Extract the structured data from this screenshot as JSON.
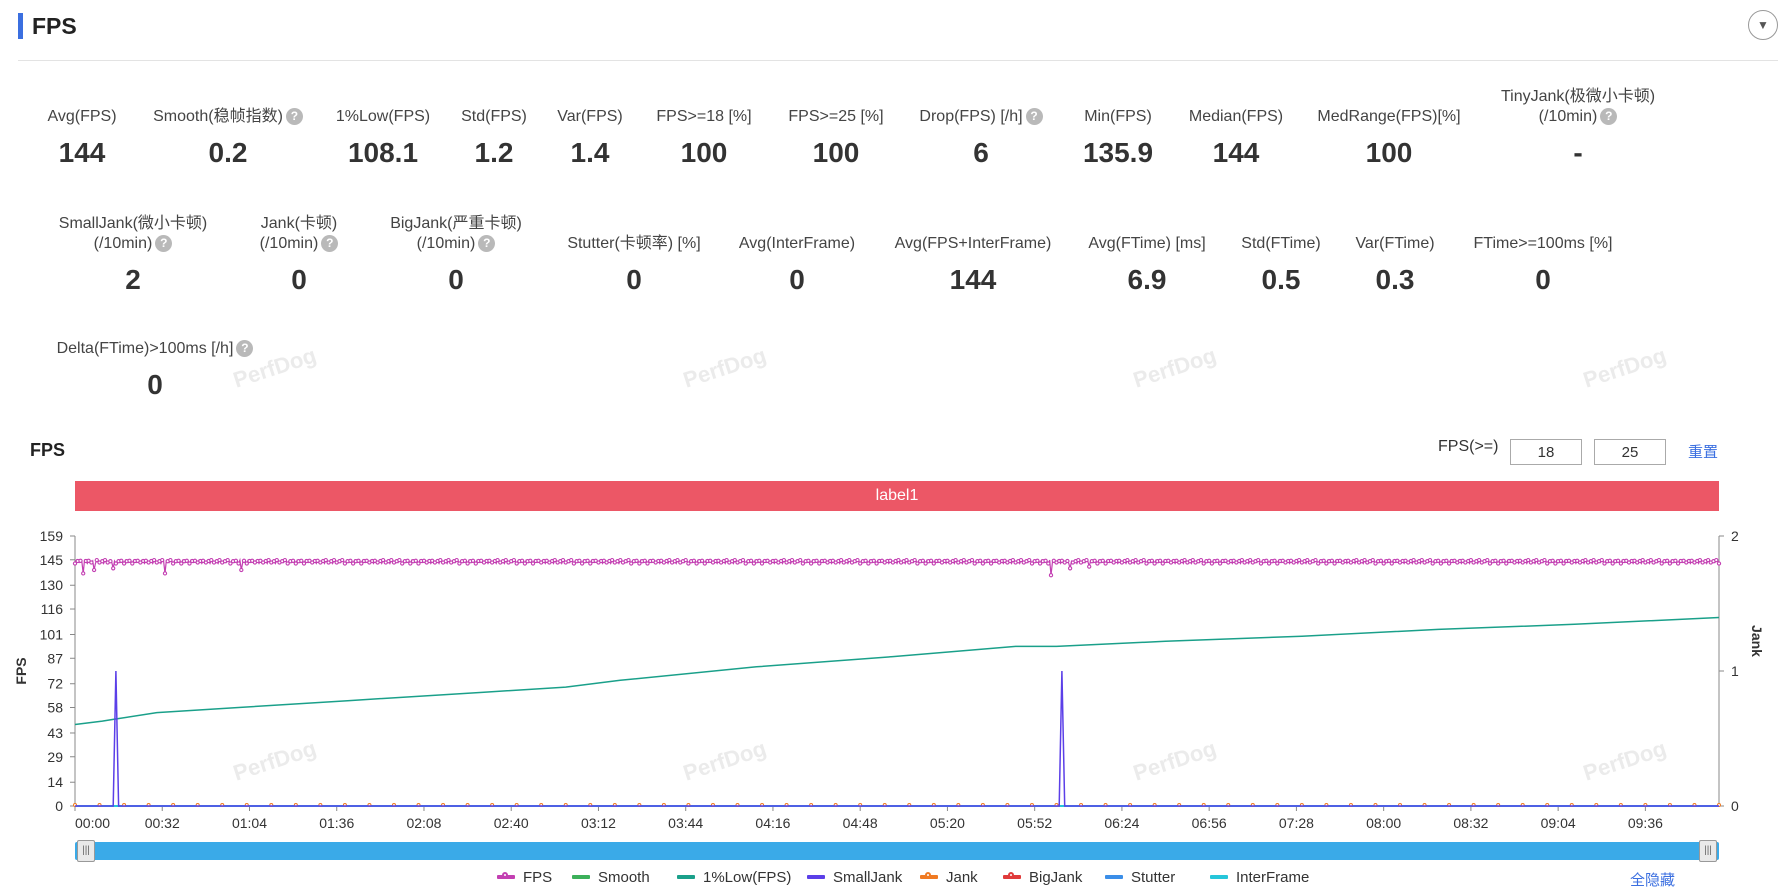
{
  "header": {
    "title": "FPS",
    "collapse_icon": "▼"
  },
  "metrics_row1": [
    {
      "label": "Avg(FPS)",
      "value": "144",
      "help": false
    },
    {
      "label": "Smooth(稳帧指数)",
      "value": "0.2",
      "help": true
    },
    {
      "label": "1%Low(FPS)",
      "value": "108.1",
      "help": false
    },
    {
      "label": "Std(FPS)",
      "value": "1.2",
      "help": false
    },
    {
      "label": "Var(FPS)",
      "value": "1.4",
      "help": false
    },
    {
      "label": "FPS>=18 [%]",
      "value": "100",
      "help": false
    },
    {
      "label": "FPS>=25 [%]",
      "value": "100",
      "help": false
    },
    {
      "label": "Drop(FPS) [/h]",
      "value": "6",
      "help": true
    },
    {
      "label": "Min(FPS)",
      "value": "135.9",
      "help": false
    },
    {
      "label": "Median(FPS)",
      "value": "144",
      "help": false
    },
    {
      "label": "MedRange(FPS)[%]",
      "value": "100",
      "help": false
    },
    {
      "label": "TinyJank(极微小卡顿)",
      "label2": "(/10min)",
      "value": "-",
      "help": true
    }
  ],
  "metrics_row2": [
    {
      "label": "SmallJank(微小卡顿)",
      "label2": "(/10min)",
      "value": "2",
      "help": true
    },
    {
      "label": "Jank(卡顿)",
      "label2": "(/10min)",
      "value": "0",
      "help": true
    },
    {
      "label": "BigJank(严重卡顿)",
      "label2": "(/10min)",
      "value": "0",
      "help": true
    },
    {
      "label": "Stutter(卡顿率) [%]",
      "value": "0",
      "help": false
    },
    {
      "label": "Avg(InterFrame)",
      "value": "0",
      "help": false
    },
    {
      "label": "Avg(FPS+InterFrame)",
      "value": "144",
      "help": false
    },
    {
      "label": "Avg(FTime) [ms]",
      "value": "6.9",
      "help": false
    },
    {
      "label": "Std(FTime)",
      "value": "0.5",
      "help": false
    },
    {
      "label": "Var(FTime)",
      "value": "0.3",
      "help": false
    },
    {
      "label": "FTime>=100ms [%]",
      "value": "0",
      "help": false
    }
  ],
  "metrics_row3": [
    {
      "label": "Delta(FTime)>100ms [/h]",
      "value": "0",
      "help": true
    }
  ],
  "help_icon": "?",
  "watermark": "PerfDog",
  "chart_section": {
    "title": "FPS",
    "threshold_label": "FPS(>=)",
    "threshold1": "18",
    "threshold2": "25",
    "reset_label": "重置",
    "label_bar": "label1"
  },
  "chart_data": {
    "type": "line",
    "ylabel": "FPS",
    "y2label": "Jank",
    "y_ticks": [
      0,
      14,
      29,
      43,
      58,
      72,
      87,
      101,
      116,
      130,
      145,
      159
    ],
    "ylim": [
      0,
      159
    ],
    "y2_ticks": [
      0,
      1,
      2
    ],
    "y2lim": [
      0,
      2
    ],
    "x_ticks": [
      "00:00",
      "00:32",
      "01:04",
      "01:36",
      "02:08",
      "02:40",
      "03:12",
      "03:44",
      "04:16",
      "04:48",
      "05:20",
      "05:52",
      "06:24",
      "06:56",
      "07:28",
      "08:00",
      "08:32",
      "09:04",
      "09:36"
    ],
    "x_range_seconds": [
      0,
      603
    ],
    "grid": false,
    "legend_position": "bottom",
    "series": [
      {
        "name": "FPS",
        "color": "#c33fb2",
        "axis": "left",
        "marker": "circle",
        "points": [
          [
            0,
            144
          ],
          [
            4,
            137
          ],
          [
            8,
            143
          ],
          [
            12,
            140
          ],
          [
            20,
            145
          ],
          [
            28,
            141
          ],
          [
            34,
            137
          ],
          [
            40,
            144
          ],
          [
            60,
            144
          ],
          [
            64,
            139
          ],
          [
            70,
            144
          ],
          [
            100,
            144
          ],
          [
            150,
            143
          ],
          [
            200,
            144
          ],
          [
            240,
            142
          ],
          [
            300,
            144
          ],
          [
            360,
            144
          ],
          [
            380,
            143
          ],
          [
            400,
            144
          ],
          [
            450,
            144
          ],
          [
            500,
            144
          ],
          [
            550,
            144
          ],
          [
            603,
            144
          ]
        ],
        "dips": [
          [
            3,
            137
          ],
          [
            7,
            139
          ],
          [
            14,
            140
          ],
          [
            33,
            137
          ],
          [
            61,
            139
          ],
          [
            358,
            135.9
          ],
          [
            365,
            140
          ],
          [
            372,
            141
          ]
        ]
      },
      {
        "name": "Smooth",
        "color": "#3cb05a",
        "axis": "left",
        "marker": "line",
        "points": [
          [
            0,
            0
          ],
          [
            603,
            0
          ]
        ]
      },
      {
        "name": "1%Low(FPS)",
        "color": "#1aa08a",
        "axis": "left",
        "marker": "line",
        "points": [
          [
            0,
            48
          ],
          [
            10,
            50
          ],
          [
            14,
            51
          ],
          [
            30,
            55
          ],
          [
            60,
            58
          ],
          [
            100,
            62
          ],
          [
            150,
            67
          ],
          [
            180,
            70
          ],
          [
            200,
            74
          ],
          [
            250,
            82
          ],
          [
            300,
            88
          ],
          [
            345,
            94
          ],
          [
            360,
            94
          ],
          [
            400,
            97
          ],
          [
            450,
            100
          ],
          [
            500,
            104
          ],
          [
            550,
            107
          ],
          [
            603,
            111
          ]
        ]
      },
      {
        "name": "SmallJank",
        "color": "#5b3fe8",
        "axis": "right",
        "marker": "line",
        "points": [
          [
            14,
            0
          ],
          [
            15,
            1
          ],
          [
            16,
            0
          ],
          [
            361,
            0
          ],
          [
            362,
            1
          ],
          [
            363,
            0
          ]
        ]
      },
      {
        "name": "Jank",
        "color": "#f07a22",
        "axis": "right",
        "marker": "circle",
        "points": [
          [
            0,
            0
          ],
          [
            603,
            0
          ]
        ]
      },
      {
        "name": "BigJank",
        "color": "#e03b3b",
        "axis": "right",
        "marker": "circle",
        "points": [
          [
            0,
            0
          ],
          [
            603,
            0
          ]
        ]
      },
      {
        "name": "Stutter",
        "color": "#3b8ee8",
        "axis": "left",
        "marker": "line",
        "points": [
          [
            0,
            0
          ],
          [
            603,
            0
          ]
        ]
      },
      {
        "name": "InterFrame",
        "color": "#26c6da",
        "axis": "left",
        "marker": "line",
        "points": [
          [
            0,
            0
          ],
          [
            603,
            0
          ]
        ]
      }
    ]
  },
  "slider": {
    "left_handle_icon": "|||",
    "right_handle_icon": "|||"
  },
  "legend": {
    "items": [
      {
        "name": "FPS",
        "color": "#c33fb2",
        "circle": true
      },
      {
        "name": "Smooth",
        "color": "#3cb05a",
        "circle": false
      },
      {
        "name": "1%Low(FPS)",
        "color": "#1aa08a",
        "circle": false
      },
      {
        "name": "SmallJank",
        "color": "#5b3fe8",
        "circle": false
      },
      {
        "name": "Jank",
        "color": "#f07a22",
        "circle": true
      },
      {
        "name": "BigJank",
        "color": "#e03b3b",
        "circle": true
      },
      {
        "name": "Stutter",
        "color": "#3b8ee8",
        "circle": false
      },
      {
        "name": "InterFrame",
        "color": "#26c6da",
        "circle": false
      }
    ],
    "hide_all_label": "全隐藏"
  }
}
